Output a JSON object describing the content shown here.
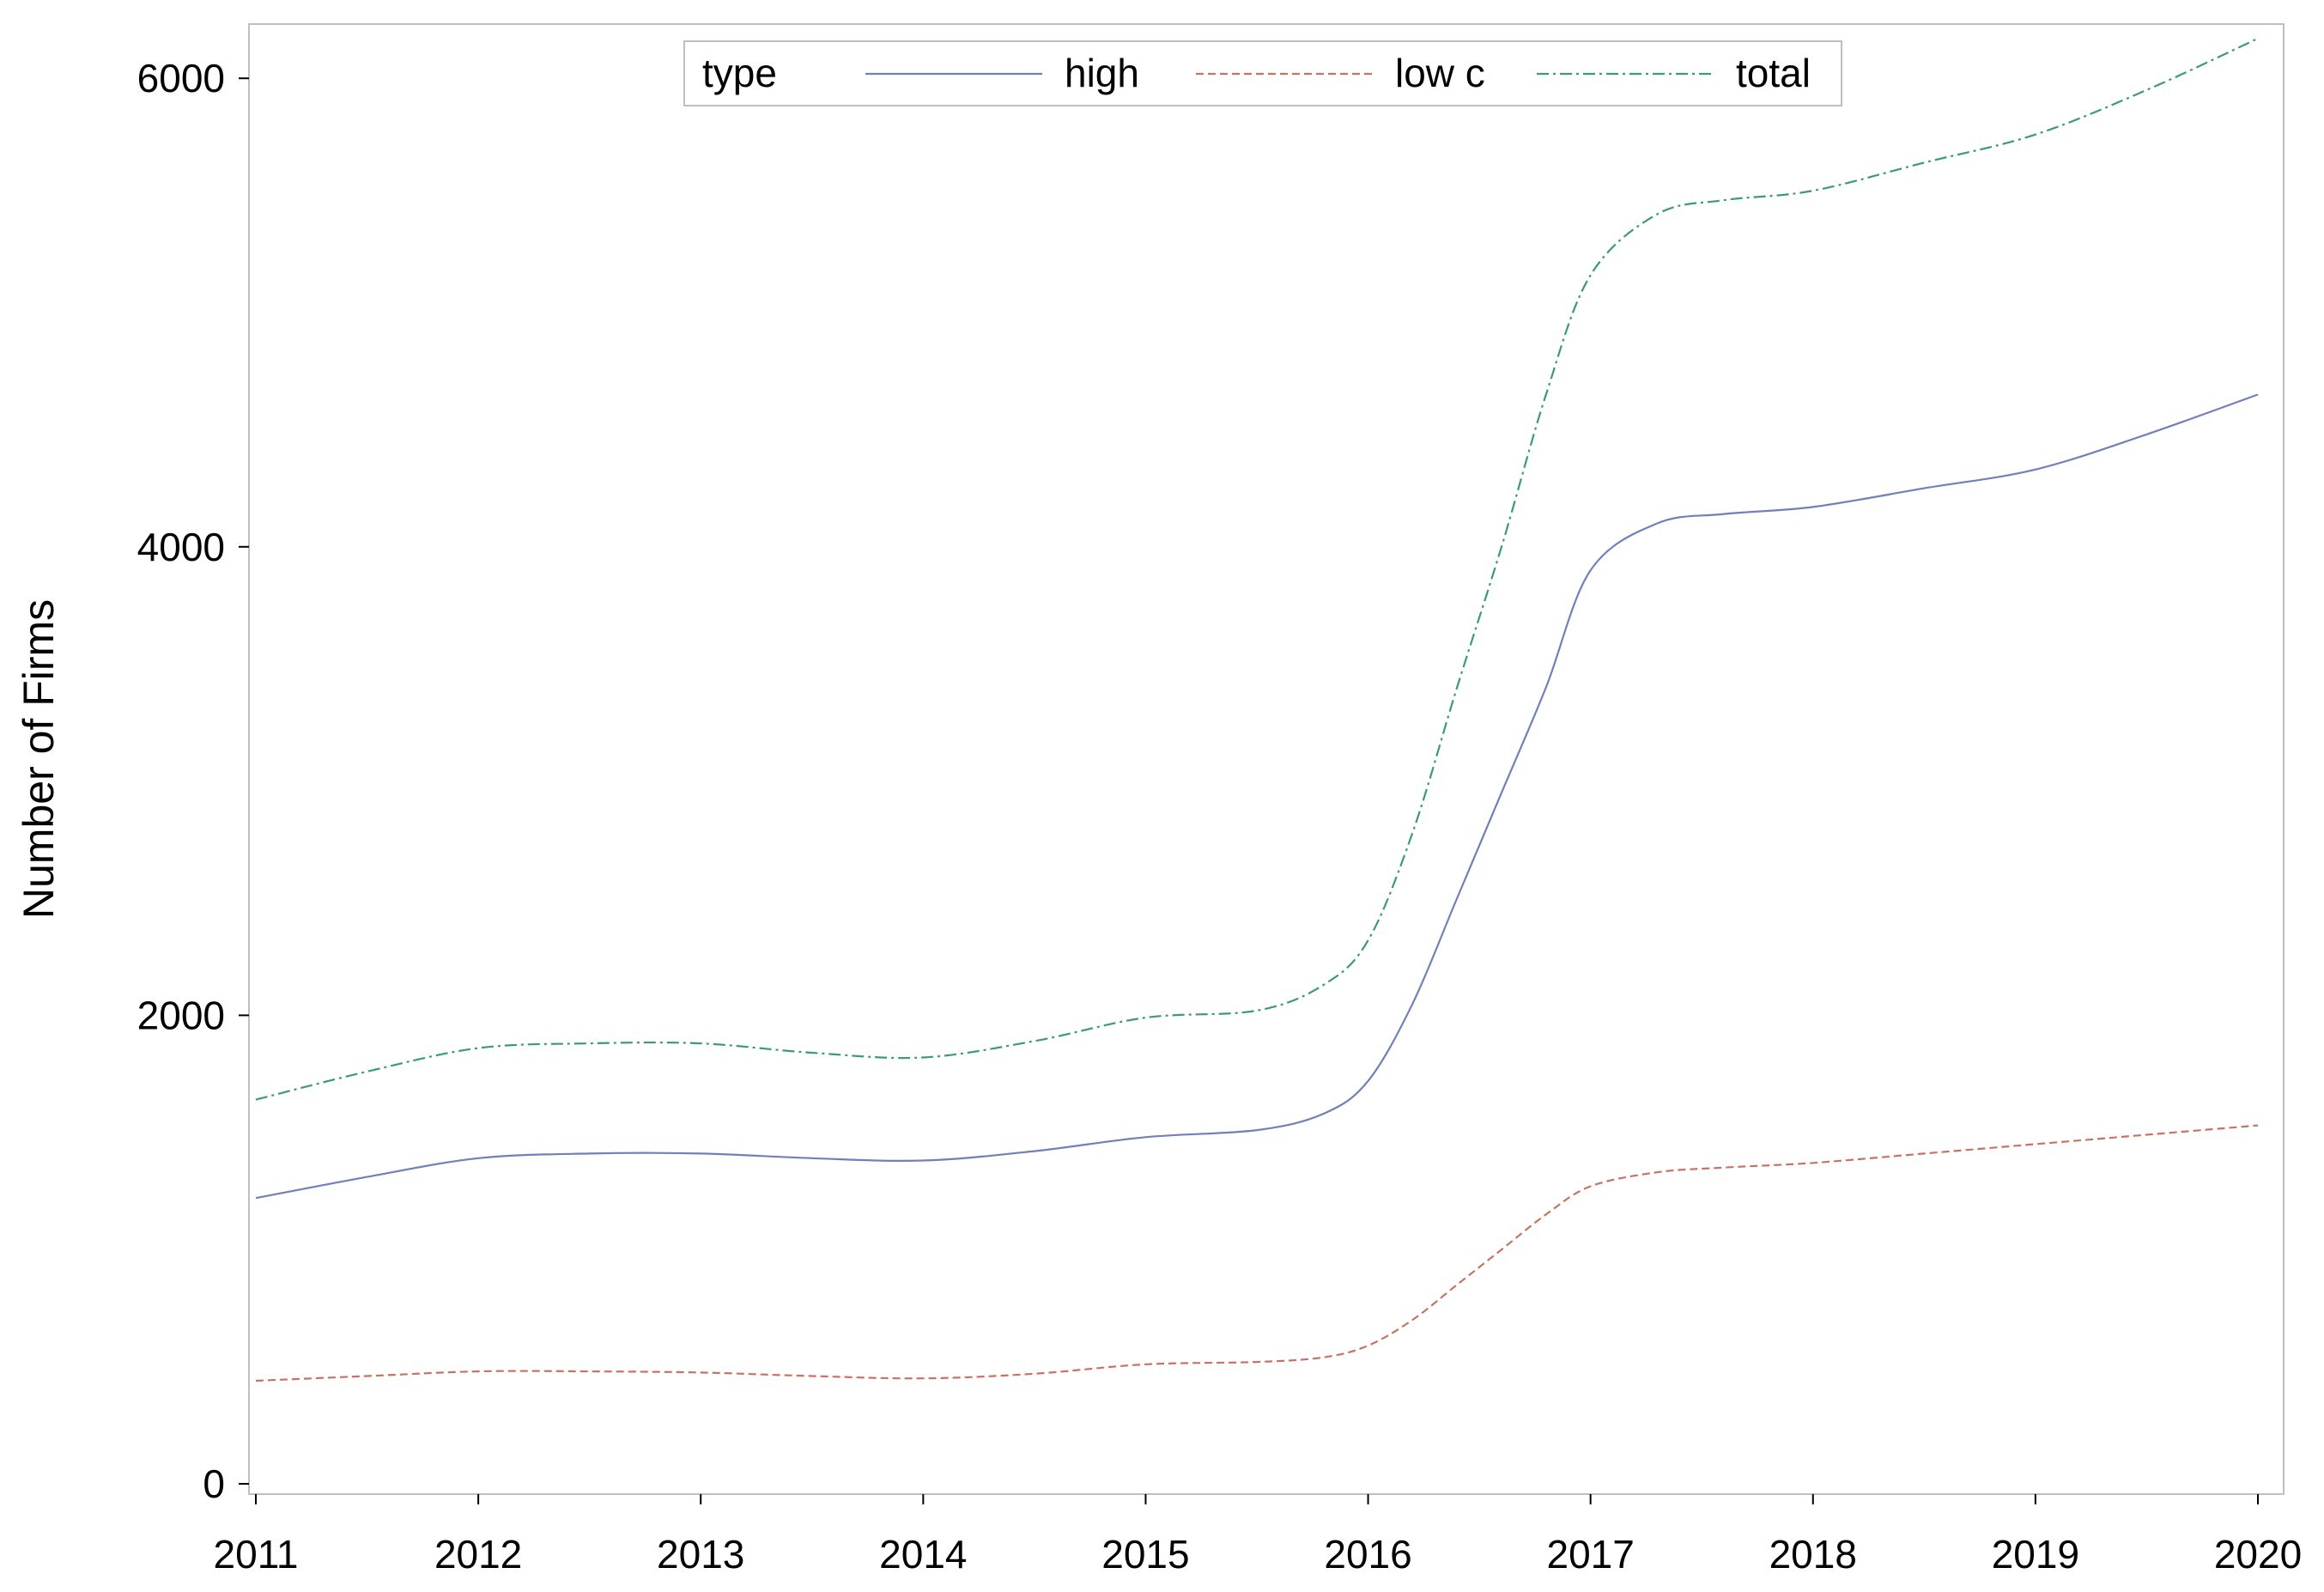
{
  "chart_data": {
    "type": "line",
    "title": "",
    "xlabel": "",
    "ylabel": "Number of Firms",
    "xlim": [
      2011,
      2020
    ],
    "ylim": [
      0,
      6300
    ],
    "xticks": [
      "2011",
      "2012",
      "2013",
      "2014",
      "2015",
      "2016",
      "2017",
      "2018",
      "2019",
      "2020"
    ],
    "yticks": [
      "0",
      "2000",
      "4000",
      "6000"
    ],
    "grid": false,
    "legend": {
      "title": "type",
      "placement": "top-center"
    },
    "series": [
      {
        "name": "high",
        "color": "#7080b8",
        "dash": "solid",
        "x": [
          2011,
          2011.5,
          2012,
          2012.5,
          2013,
          2013.5,
          2014,
          2014.5,
          2015,
          2015.5,
          2015.8,
          2016,
          2016.2,
          2016.4,
          2016.6,
          2016.8,
          2017,
          2017.3,
          2017.6,
          2018,
          2018.5,
          2019,
          2019.5,
          2020
        ],
        "values": [
          1220,
          1310,
          1390,
          1410,
          1410,
          1390,
          1380,
          1420,
          1480,
          1510,
          1580,
          1720,
          2050,
          2500,
          2950,
          3400,
          3900,
          4100,
          4140,
          4170,
          4250,
          4330,
          4480,
          4650
        ]
      },
      {
        "name": "low c",
        "color": "#c8735f",
        "dash": "dashed",
        "x": [
          2011,
          2011.5,
          2012,
          2012.5,
          2013,
          2013.5,
          2014,
          2014.5,
          2015,
          2015.5,
          2015.8,
          2016,
          2016.2,
          2016.4,
          2016.6,
          2016.8,
          2017,
          2017.3,
          2017.6,
          2018,
          2018.5,
          2019,
          2019.5,
          2020
        ],
        "values": [
          440,
          460,
          480,
          480,
          475,
          460,
          450,
          470,
          510,
          520,
          540,
          590,
          700,
          850,
          1000,
          1150,
          1270,
          1330,
          1350,
          1370,
          1410,
          1450,
          1490,
          1530
        ]
      },
      {
        "name": "total",
        "color": "#3a9b74",
        "dash": "dashdot",
        "x": [
          2011,
          2011.5,
          2012,
          2012.5,
          2013,
          2013.5,
          2014,
          2014.5,
          2015,
          2015.5,
          2015.8,
          2016,
          2016.2,
          2016.4,
          2016.6,
          2016.8,
          2017,
          2017.3,
          2017.6,
          2018,
          2018.5,
          2019,
          2019.5,
          2020
        ],
        "values": [
          1640,
          1760,
          1860,
          1880,
          1880,
          1840,
          1820,
          1890,
          1990,
          2020,
          2130,
          2320,
          2780,
          3400,
          4000,
          4650,
          5160,
          5420,
          5480,
          5520,
          5640,
          5760,
          5950,
          6170
        ]
      }
    ]
  }
}
